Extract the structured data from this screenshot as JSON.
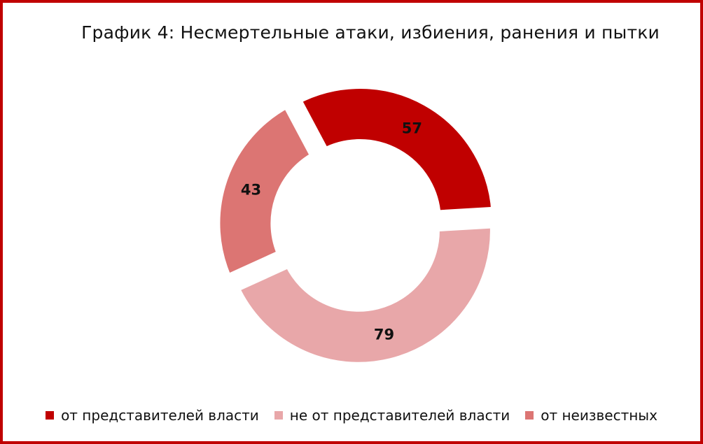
{
  "chart_data": {
    "type": "pie",
    "title": "График 4: Несмертельные атаки, избиения, ранения и пытки",
    "categories": [
      "от представителей власти",
      "не от представителей власти",
      "от неизвестных"
    ],
    "values": [
      57,
      79,
      43
    ],
    "colors": [
      "#c00000",
      "#e8a7a9",
      "#dc7573"
    ],
    "donut": true,
    "exploded": true,
    "legend": "bottom"
  },
  "legend": [
    {
      "label": "от представителей власти",
      "color": "#c00000"
    },
    {
      "label": "не от представителей власти",
      "color": "#e8a7a9"
    },
    {
      "label": "от неизвестных",
      "color": "#dc7573"
    }
  ]
}
